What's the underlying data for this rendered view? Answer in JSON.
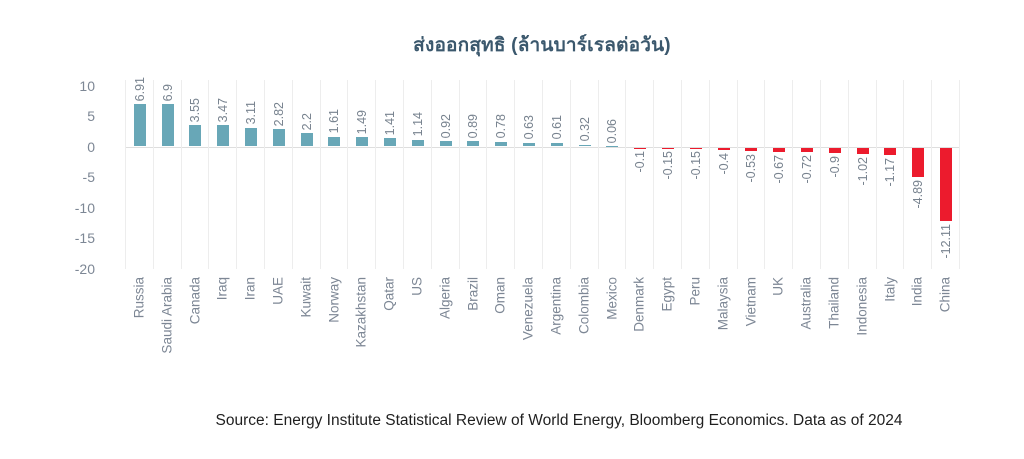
{
  "title": "ส่งออกสุทธิ (ล้านบาร์เรลต่อวัน)",
  "source": "Source: Energy Institute Statistical Review of World Energy, Bloomberg Economics. Data as of 2024",
  "colors": {
    "positive_bar": "#68a7b7",
    "negative_bar": "#ec1b2d",
    "axis_text": "#7d8795",
    "value_text": "#78838f",
    "title_text": "#3b586d",
    "gridline": "#ededed",
    "zero_line": "#dedede",
    "source_text": "#1f1f1f"
  },
  "chart_data": {
    "type": "bar",
    "title": "ส่งออกสุทธิ (ล้านบาร์เรลต่อวัน)",
    "xlabel": "",
    "ylabel": "",
    "categories": [
      "Russia",
      "Saudi Arabia",
      "Canada",
      "Iraq",
      "Iran",
      "UAE",
      "Kuwait",
      "Norway",
      "Kazakhstan",
      "Qatar",
      "US",
      "Algeria",
      "Brazil",
      "Oman",
      "Venezuela",
      "Argentina",
      "Colombia",
      "Mexico",
      "Denmark",
      "Egypt",
      "Peru",
      "Malaysia",
      "Vietnam",
      "UK",
      "Australia",
      "Thailand",
      "Indonesia",
      "Italy",
      "India",
      "China"
    ],
    "values": [
      6.91,
      6.9,
      3.55,
      3.47,
      3.11,
      2.82,
      2.2,
      1.61,
      1.49,
      1.41,
      1.14,
      0.92,
      0.89,
      0.78,
      0.63,
      0.61,
      0.32,
      0.06,
      -0.1,
      -0.15,
      -0.15,
      -0.4,
      -0.53,
      -0.67,
      -0.72,
      -0.9,
      -1.02,
      -1.17,
      -4.89,
      -12.11
    ],
    "value_labels": [
      "6.91",
      "6.9",
      "3.55",
      "3.47",
      "3.11",
      "2.82",
      "2.2",
      "1.61",
      "1.49",
      "1.41",
      "1.14",
      "0.92",
      "0.89",
      "0.78",
      "0.63",
      "0.61",
      "0.32",
      "0.06",
      "-0.1",
      "-0.15",
      "-0.15",
      "-0.4",
      "-0.53",
      "-0.67",
      "-0.72",
      "-0.9",
      "-1.02",
      "-1.17",
      "-4.89",
      "-12.11"
    ],
    "yticks": [
      10,
      5,
      0,
      -5,
      -10,
      -15,
      -20
    ],
    "ylim": [
      -20,
      10
    ],
    "grid": "vertical-column-separators-only",
    "legend": "none",
    "bar_label_rotation": 90,
    "x_label_rotation": 90
  }
}
